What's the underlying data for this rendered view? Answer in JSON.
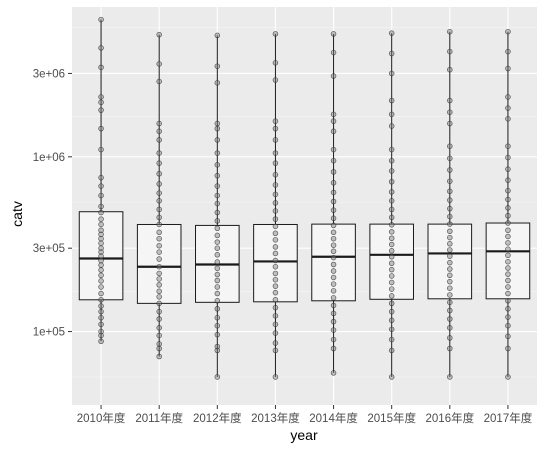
{
  "chart_data": {
    "type": "box",
    "title": "",
    "xlabel": "year",
    "ylabel": "catv",
    "y_scale": "log10",
    "ylim": [
      38000,
      7200000
    ],
    "y_ticks": [
      {
        "value": 100000,
        "label": "1e+05"
      },
      {
        "value": 300000,
        "label": "3e+05"
      },
      {
        "value": 1000000,
        "label": "1e+06"
      },
      {
        "value": 3000000,
        "label": "3e+06"
      }
    ],
    "y_minor_ticks": [
      55000,
      170000,
      550000,
      1700000,
      5500000
    ],
    "grid": true,
    "legend": "none",
    "colors": {
      "panel": "#ebebeb",
      "grid_major": "#ffffff",
      "grid_minor": "#f5f5f5",
      "box_fill": "#f5f5f5",
      "box_stroke": "#1a1a1a",
      "point_fill": "#7f7f7f",
      "point_stroke": "#2b2b2b"
    },
    "categories": [
      "2010年度",
      "2011年度",
      "2012年度",
      "2013年度",
      "2014年度",
      "2015年度",
      "2016年度",
      "2017年度"
    ],
    "boxes": [
      {
        "whisker_low": 88000,
        "q1": 152000,
        "median": 262000,
        "q3": 485000,
        "whisker_high": 6100000,
        "points": [
          6100000,
          4200000,
          3250000,
          2200000,
          2050000,
          1850000,
          1450000,
          1100000,
          760000,
          680000,
          600000,
          520000,
          480000,
          440000,
          410000,
          380000,
          360000,
          340000,
          320000,
          300000,
          285000,
          270000,
          255000,
          240000,
          225000,
          210000,
          195000,
          180000,
          165000,
          152000,
          140000,
          130000,
          120000,
          110000,
          100000,
          95000,
          88000
        ]
      },
      {
        "whisker_low": 72000,
        "q1": 145000,
        "median": 235000,
        "q3": 410000,
        "whisker_high": 5000000,
        "points": [
          5000000,
          3400000,
          2700000,
          1550000,
          1400000,
          1250000,
          1050000,
          920000,
          800000,
          700000,
          620000,
          560000,
          500000,
          450000,
          410000,
          370000,
          340000,
          310000,
          285000,
          260000,
          235000,
          215000,
          200000,
          185000,
          170000,
          158000,
          145000,
          130000,
          118000,
          105000,
          95000,
          85000,
          80000,
          72000
        ]
      },
      {
        "whisker_low": 55000,
        "q1": 147000,
        "median": 242000,
        "q3": 405000,
        "whisker_high": 4950000,
        "points": [
          4950000,
          3300000,
          2650000,
          1550000,
          1450000,
          1250000,
          1050000,
          900000,
          780000,
          680000,
          600000,
          540000,
          480000,
          430000,
          390000,
          355000,
          325000,
          300000,
          275000,
          250000,
          230000,
          212000,
          196000,
          180000,
          165000,
          150000,
          135000,
          120000,
          108000,
          96000,
          82000,
          78000,
          55000
        ]
      },
      {
        "whisker_low": 55000,
        "q1": 148000,
        "median": 252000,
        "q3": 410000,
        "whisker_high": 5050000,
        "points": [
          5050000,
          3450000,
          2750000,
          1600000,
          1450000,
          1250000,
          1050000,
          920000,
          790000,
          690000,
          610000,
          545000,
          490000,
          440000,
          400000,
          365000,
          335000,
          305000,
          280000,
          255000,
          235000,
          215000,
          198000,
          182000,
          167000,
          152000,
          137000,
          123000,
          110000,
          98000,
          86000,
          78000,
          55000
        ]
      },
      {
        "whisker_low": 58000,
        "q1": 150000,
        "median": 268000,
        "q3": 412000,
        "whisker_high": 5050000,
        "points": [
          5050000,
          3950000,
          2900000,
          1750000,
          1600000,
          1400000,
          1100000,
          950000,
          820000,
          710000,
          625000,
          555000,
          495000,
          445000,
          405000,
          370000,
          340000,
          312000,
          288000,
          265000,
          242000,
          222000,
          204000,
          187000,
          171000,
          156000,
          141000,
          127000,
          114000,
          102000,
          90000,
          80000,
          58000
        ]
      },
      {
        "whisker_low": 55000,
        "q1": 153000,
        "median": 275000,
        "q3": 412000,
        "whisker_high": 5100000,
        "points": [
          5100000,
          3900000,
          3000000,
          2100000,
          1750000,
          1500000,
          1100000,
          950000,
          830000,
          720000,
          630000,
          560000,
          500000,
          450000,
          408000,
          372000,
          342000,
          315000,
          290000,
          268000,
          246000,
          226000,
          208000,
          191000,
          175000,
          160000,
          145000,
          130000,
          116000,
          103000,
          90000,
          78000,
          55000
        ]
      },
      {
        "whisker_low": 55000,
        "q1": 154000,
        "median": 280000,
        "q3": 412000,
        "whisker_high": 5200000,
        "points": [
          5200000,
          4000000,
          3150000,
          2100000,
          1800000,
          1550000,
          1150000,
          980000,
          840000,
          725000,
          635000,
          565000,
          505000,
          455000,
          412000,
          375000,
          345000,
          318000,
          293000,
          270000,
          248000,
          228000,
          210000,
          193000,
          177000,
          162000,
          147000,
          132000,
          118000,
          105000,
          92000,
          80000,
          55000
        ]
      },
      {
        "whisker_low": 55000,
        "q1": 154000,
        "median": 288000,
        "q3": 418000,
        "whisker_high": 5200000,
        "points": [
          5200000,
          4000000,
          3200000,
          2200000,
          1900000,
          1650000,
          1150000,
          990000,
          850000,
          735000,
          640000,
          570000,
          510000,
          460000,
          418000,
          380000,
          350000,
          322000,
          296000,
          273000,
          251000,
          231000,
          213000,
          196000,
          180000,
          165000,
          150000,
          135000,
          121000,
          108000,
          94000,
          80000,
          55000
        ]
      }
    ]
  }
}
